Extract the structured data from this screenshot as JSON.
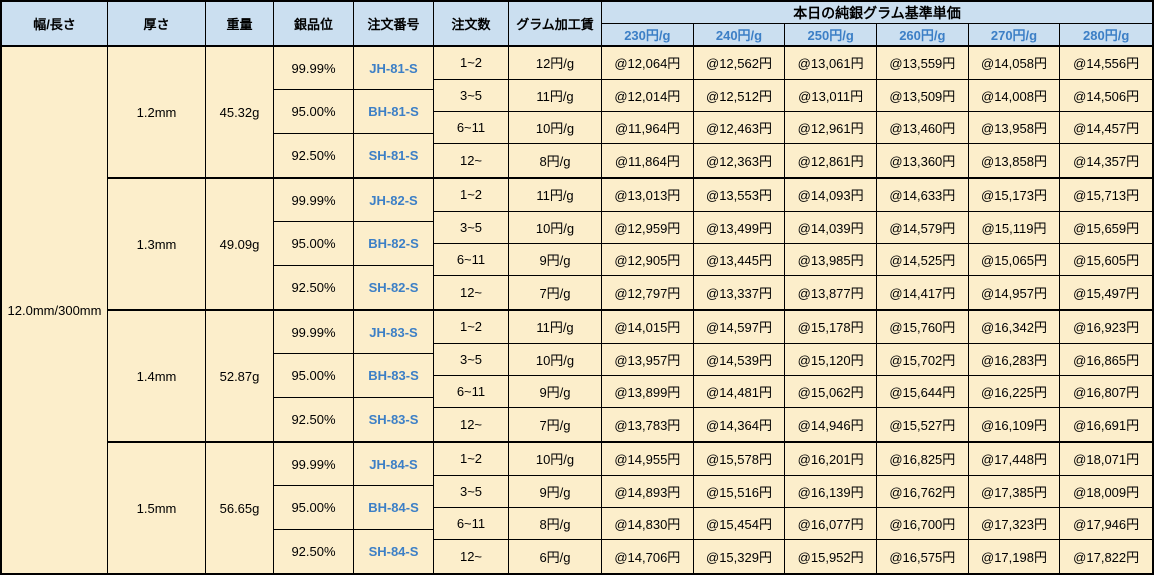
{
  "header": {
    "width_length": "幅/長さ",
    "thickness": "厚さ",
    "weight": "重量",
    "purity": "銀品位",
    "order_no": "注文番号",
    "order_qty": "注文数",
    "fee": "グラム加工賃",
    "price_group": "本日の純銀グラム基準単価",
    "price_cols": [
      "230円/g",
      "240円/g",
      "250円/g",
      "260円/g",
      "270円/g",
      "280円/g"
    ]
  },
  "size_label": "12.0mm/300mm",
  "colors": {
    "header_bg": "#cbdff0",
    "body_bg": "#fceecb",
    "accent_text": "#3c7fc6",
    "border": "#000000",
    "text": "#000000"
  },
  "blocks": [
    {
      "thickness": "1.2mm",
      "weight": "45.32g",
      "purities": [
        {
          "purity": "99.99%",
          "order_no": "JH-81-S"
        },
        {
          "purity": "95.00%",
          "order_no": "BH-81-S"
        },
        {
          "purity": "92.50%",
          "order_no": "SH-81-S"
        }
      ],
      "rows": [
        {
          "qty": "1~2",
          "fee": "12円/g",
          "prices": [
            "@12,064円",
            "@12,562円",
            "@13,061円",
            "@13,559円",
            "@14,058円",
            "@14,556円"
          ]
        },
        {
          "qty": "3~5",
          "fee": "11円/g",
          "prices": [
            "@12,014円",
            "@12,512円",
            "@13,011円",
            "@13,509円",
            "@14,008円",
            "@14,506円"
          ]
        },
        {
          "qty": "6~11",
          "fee": "10円/g",
          "prices": [
            "@11,964円",
            "@12,463円",
            "@12,961円",
            "@13,460円",
            "@13,958円",
            "@14,457円"
          ]
        },
        {
          "qty": "12~",
          "fee": "8円/g",
          "prices": [
            "@11,864円",
            "@12,363円",
            "@12,861円",
            "@13,360円",
            "@13,858円",
            "@14,357円"
          ]
        }
      ]
    },
    {
      "thickness": "1.3mm",
      "weight": "49.09g",
      "purities": [
        {
          "purity": "99.99%",
          "order_no": "JH-82-S"
        },
        {
          "purity": "95.00%",
          "order_no": "BH-82-S"
        },
        {
          "purity": "92.50%",
          "order_no": "SH-82-S"
        }
      ],
      "rows": [
        {
          "qty": "1~2",
          "fee": "11円/g",
          "prices": [
            "@13,013円",
            "@13,553円",
            "@14,093円",
            "@14,633円",
            "@15,173円",
            "@15,713円"
          ]
        },
        {
          "qty": "3~5",
          "fee": "10円/g",
          "prices": [
            "@12,959円",
            "@13,499円",
            "@14,039円",
            "@14,579円",
            "@15,119円",
            "@15,659円"
          ]
        },
        {
          "qty": "6~11",
          "fee": "9円/g",
          "prices": [
            "@12,905円",
            "@13,445円",
            "@13,985円",
            "@14,525円",
            "@15,065円",
            "@15,605円"
          ]
        },
        {
          "qty": "12~",
          "fee": "7円/g",
          "prices": [
            "@12,797円",
            "@13,337円",
            "@13,877円",
            "@14,417円",
            "@14,957円",
            "@15,497円"
          ]
        }
      ]
    },
    {
      "thickness": "1.4mm",
      "weight": "52.87g",
      "purities": [
        {
          "purity": "99.99%",
          "order_no": "JH-83-S"
        },
        {
          "purity": "95.00%",
          "order_no": "BH-83-S"
        },
        {
          "purity": "92.50%",
          "order_no": "SH-83-S"
        }
      ],
      "rows": [
        {
          "qty": "1~2",
          "fee": "11円/g",
          "prices": [
            "@14,015円",
            "@14,597円",
            "@15,178円",
            "@15,760円",
            "@16,342円",
            "@16,923円"
          ]
        },
        {
          "qty": "3~5",
          "fee": "10円/g",
          "prices": [
            "@13,957円",
            "@14,539円",
            "@15,120円",
            "@15,702円",
            "@16,283円",
            "@16,865円"
          ]
        },
        {
          "qty": "6~11",
          "fee": "9円/g",
          "prices": [
            "@13,899円",
            "@14,481円",
            "@15,062円",
            "@15,644円",
            "@16,225円",
            "@16,807円"
          ]
        },
        {
          "qty": "12~",
          "fee": "7円/g",
          "prices": [
            "@13,783円",
            "@14,364円",
            "@14,946円",
            "@15,527円",
            "@16,109円",
            "@16,691円"
          ]
        }
      ]
    },
    {
      "thickness": "1.5mm",
      "weight": "56.65g",
      "purities": [
        {
          "purity": "99.99%",
          "order_no": "JH-84-S"
        },
        {
          "purity": "95.00%",
          "order_no": "BH-84-S"
        },
        {
          "purity": "92.50%",
          "order_no": "SH-84-S"
        }
      ],
      "rows": [
        {
          "qty": "1~2",
          "fee": "10円/g",
          "prices": [
            "@14,955円",
            "@15,578円",
            "@16,201円",
            "@16,825円",
            "@17,448円",
            "@18,071円"
          ]
        },
        {
          "qty": "3~5",
          "fee": "9円/g",
          "prices": [
            "@14,893円",
            "@15,516円",
            "@16,139円",
            "@16,762円",
            "@17,385円",
            "@18,009円"
          ]
        },
        {
          "qty": "6~11",
          "fee": "8円/g",
          "prices": [
            "@14,830円",
            "@15,454円",
            "@16,077円",
            "@16,700円",
            "@17,323円",
            "@17,946円"
          ]
        },
        {
          "qty": "12~",
          "fee": "6円/g",
          "prices": [
            "@14,706円",
            "@15,329円",
            "@15,952円",
            "@16,575円",
            "@17,198円",
            "@17,822円"
          ]
        }
      ]
    }
  ]
}
